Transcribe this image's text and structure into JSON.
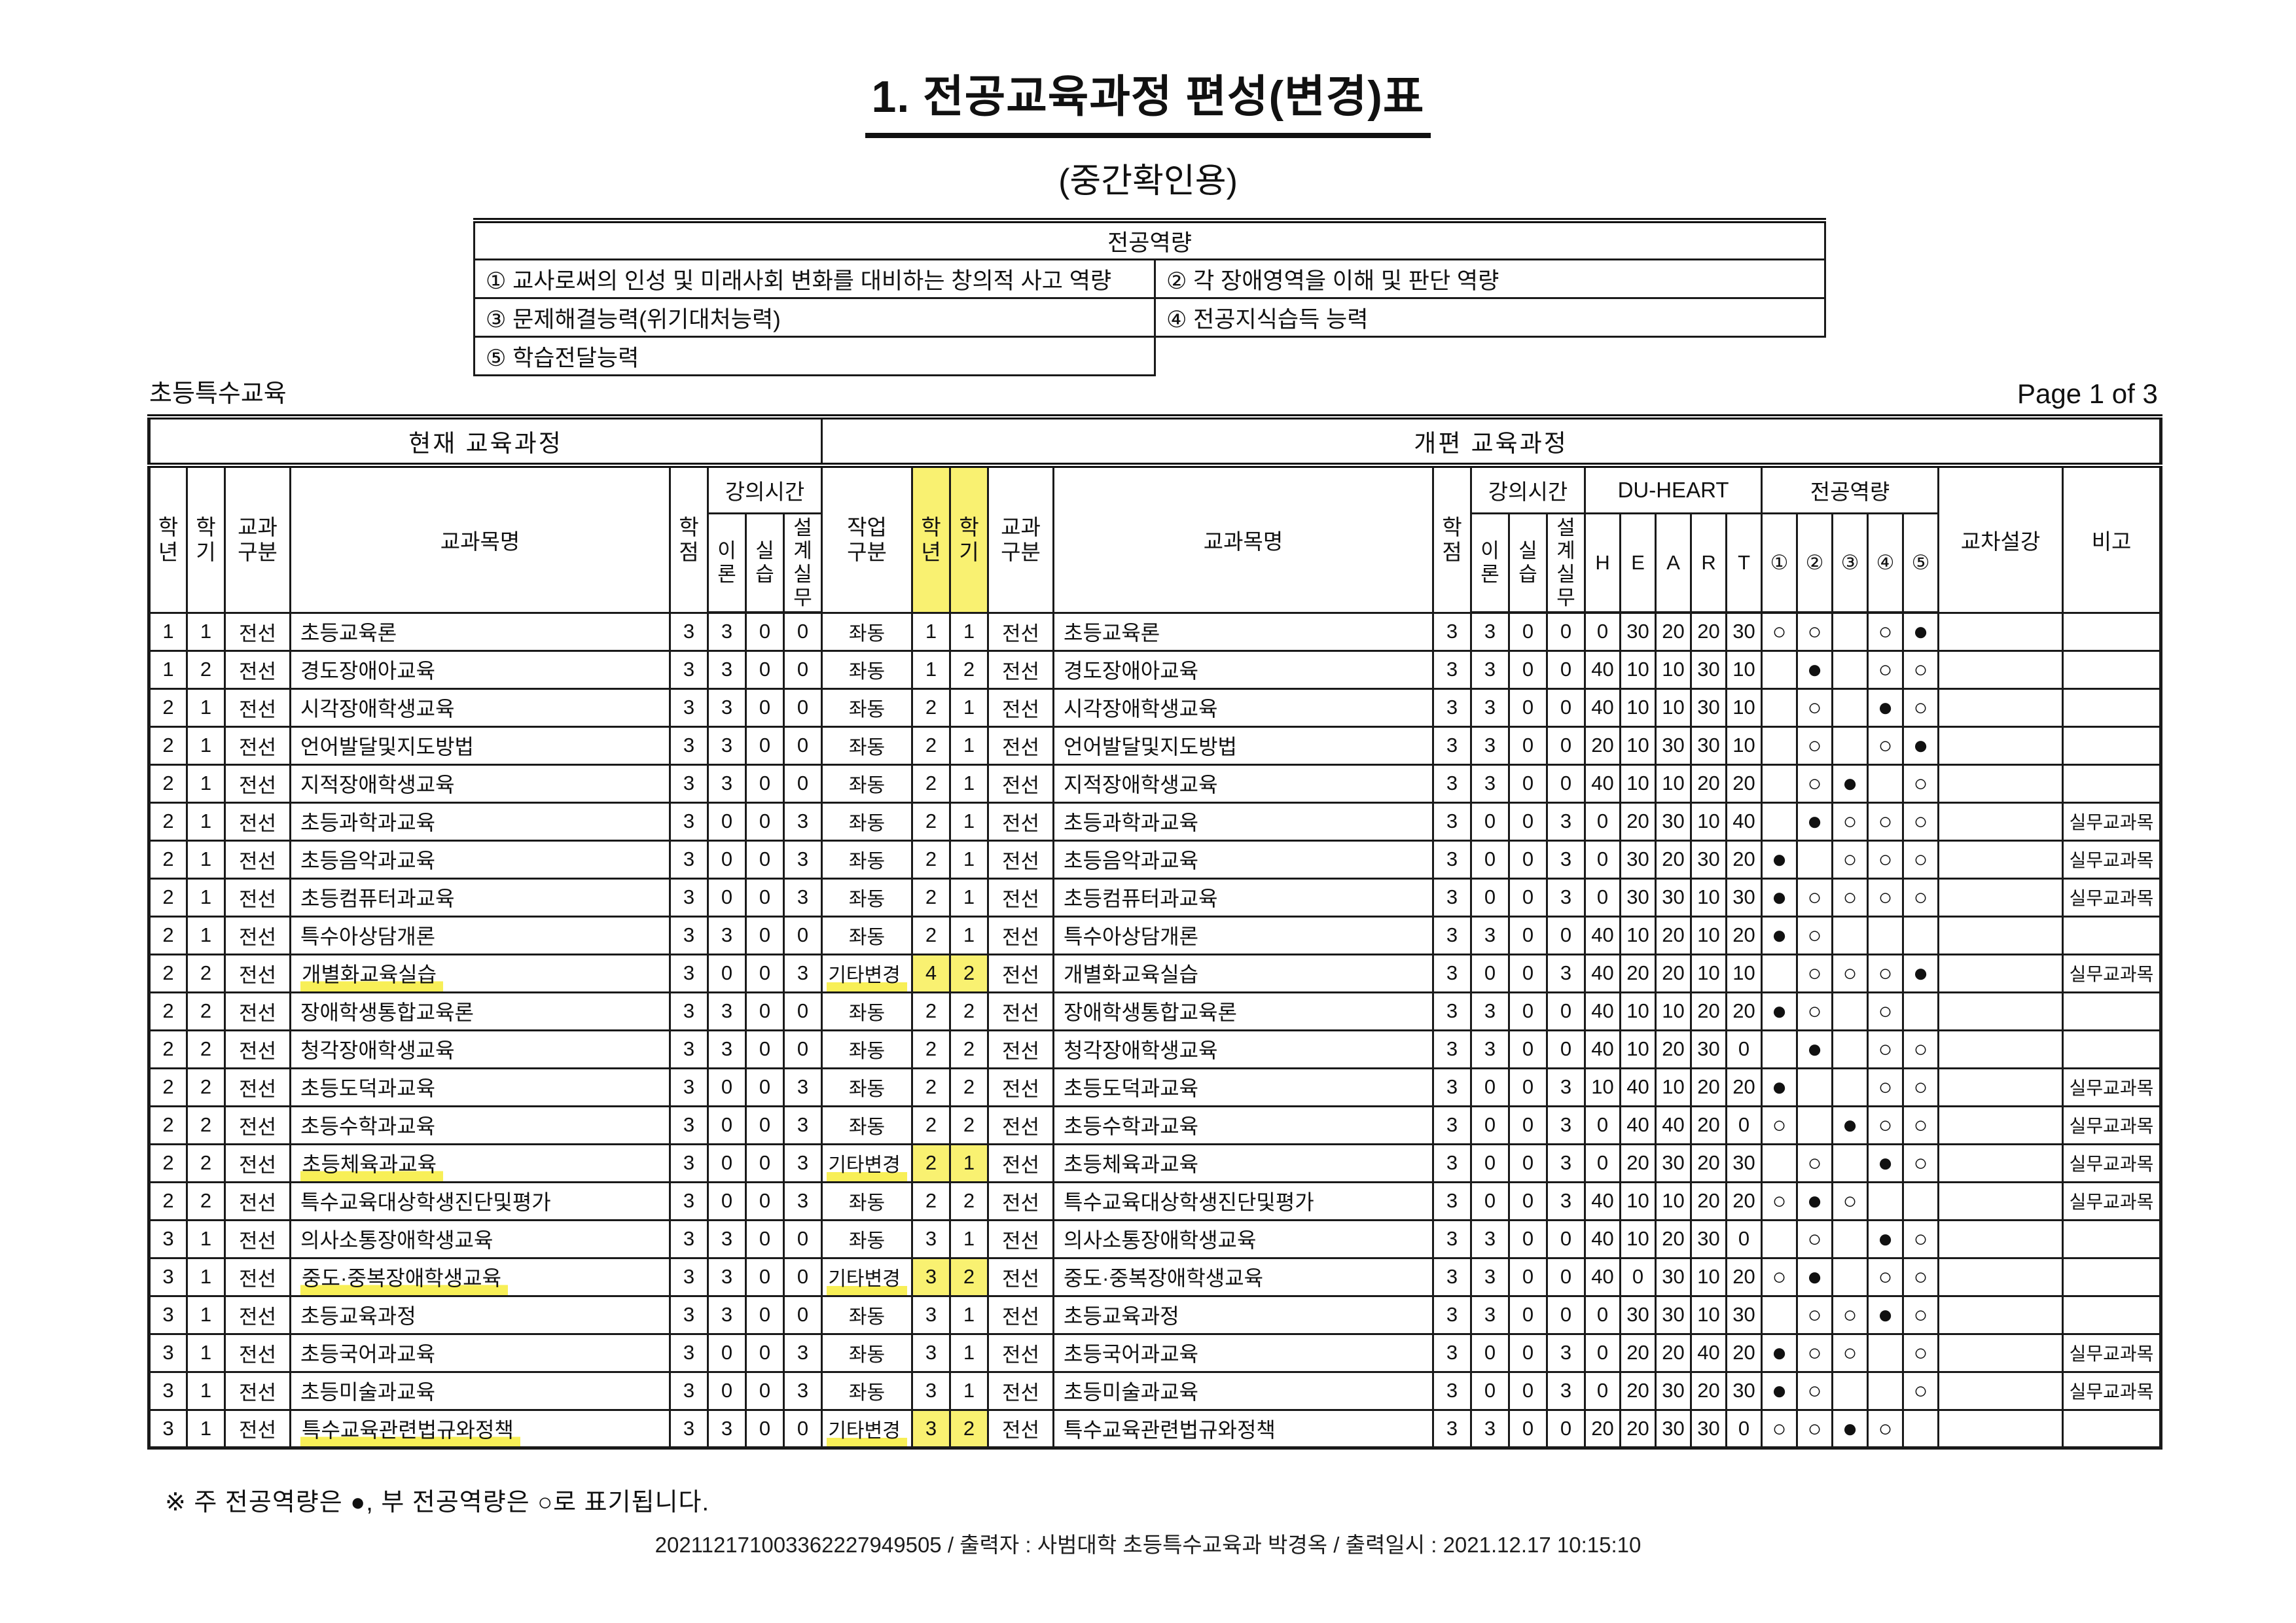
{
  "page": {
    "title": "1. 전공교육과정 편성(변경)표",
    "subtitle": "(중간확인용)",
    "department_label": "초등특수교육",
    "page_indicator": "Page 1 of 3",
    "footnote": "※ 주 전공역량은 ●, 부 전공역량은 ○로 표기됩니다.",
    "print_line": "202112171003362227949505 / 출력자 : 사범대학 초등특수교육과 박경옥 / 출력일시 : 2021.12.17 10:15:10",
    "highlight_color": "#f7ee4e"
  },
  "competency_box": {
    "title": "전공역량",
    "items": [
      [
        "① 교사로써의 인성 및 미래사회 변화를 대비하는 창의적 사고 역량",
        "② 각 장애영역을 이해 및 판단 역량"
      ],
      [
        "③ 문제해결능력(위기대처능력)",
        "④ 전공지식습득 능력"
      ],
      [
        "⑤ 학습전달능력",
        ""
      ]
    ]
  },
  "table": {
    "group_current": "현재 교육과정",
    "group_revised": "개편 교육과정",
    "headers": {
      "grade": "학\n년",
      "semester": "학\n기",
      "category": "교과\n구분",
      "course": "교과목명",
      "credit": "학\n점",
      "lecture_hours": "강의시간",
      "theory": "이\n론",
      "practice": "실\n습",
      "design": "설\n계\n실\n무",
      "work_type": "작업\n구분",
      "du_heart": "DU-HEART",
      "heart": [
        "H",
        "E",
        "A",
        "R",
        "T"
      ],
      "competency": "전공역량",
      "competency_nums": [
        "①",
        "②",
        "③",
        "④",
        "⑤"
      ],
      "cross_listing": "교차설강",
      "note": "비고"
    },
    "legend": {
      "major": "●",
      "minor": "○"
    },
    "rows": [
      {
        "cur": [
          "1",
          "1",
          "전선",
          "초등교육론",
          "3",
          "3",
          "0",
          "0"
        ],
        "rev": [
          "좌동",
          "1",
          "1",
          "전선",
          "초등교육론",
          "3",
          "3",
          "0",
          "0",
          "0",
          "30",
          "20",
          "20",
          "30",
          "○",
          "○",
          "",
          "○",
          "●",
          "",
          ""
        ],
        "hl": false
      },
      {
        "cur": [
          "1",
          "2",
          "전선",
          "경도장애아교육",
          "3",
          "3",
          "0",
          "0"
        ],
        "rev": [
          "좌동",
          "1",
          "2",
          "전선",
          "경도장애아교육",
          "3",
          "3",
          "0",
          "0",
          "40",
          "10",
          "10",
          "30",
          "10",
          "",
          "●",
          "",
          "○",
          "○",
          "",
          ""
        ],
        "hl": false
      },
      {
        "cur": [
          "2",
          "1",
          "전선",
          "시각장애학생교육",
          "3",
          "3",
          "0",
          "0"
        ],
        "rev": [
          "좌동",
          "2",
          "1",
          "전선",
          "시각장애학생교육",
          "3",
          "3",
          "0",
          "0",
          "40",
          "10",
          "10",
          "30",
          "10",
          "",
          "○",
          "",
          "●",
          "○",
          "",
          ""
        ],
        "hl": false
      },
      {
        "cur": [
          "2",
          "1",
          "전선",
          "언어발달및지도방법",
          "3",
          "3",
          "0",
          "0"
        ],
        "rev": [
          "좌동",
          "2",
          "1",
          "전선",
          "언어발달및지도방법",
          "3",
          "3",
          "0",
          "0",
          "20",
          "10",
          "30",
          "30",
          "10",
          "",
          "○",
          "",
          "○",
          "●",
          "",
          ""
        ],
        "hl": false
      },
      {
        "cur": [
          "2",
          "1",
          "전선",
          "지적장애학생교육",
          "3",
          "3",
          "0",
          "0"
        ],
        "rev": [
          "좌동",
          "2",
          "1",
          "전선",
          "지적장애학생교육",
          "3",
          "3",
          "0",
          "0",
          "40",
          "10",
          "10",
          "20",
          "20",
          "",
          "○",
          "●",
          "",
          "○",
          "",
          ""
        ],
        "hl": false
      },
      {
        "cur": [
          "2",
          "1",
          "전선",
          "초등과학과교육",
          "3",
          "0",
          "0",
          "3"
        ],
        "rev": [
          "좌동",
          "2",
          "1",
          "전선",
          "초등과학과교육",
          "3",
          "0",
          "0",
          "3",
          "0",
          "20",
          "30",
          "10",
          "40",
          "",
          "●",
          "○",
          "○",
          "○",
          "",
          "실무교과목"
        ],
        "hl": false
      },
      {
        "cur": [
          "2",
          "1",
          "전선",
          "초등음악과교육",
          "3",
          "0",
          "0",
          "3"
        ],
        "rev": [
          "좌동",
          "2",
          "1",
          "전선",
          "초등음악과교육",
          "3",
          "0",
          "0",
          "3",
          "0",
          "30",
          "20",
          "30",
          "20",
          "●",
          "",
          "○",
          "○",
          "○",
          "",
          "실무교과목"
        ],
        "hl": false
      },
      {
        "cur": [
          "2",
          "1",
          "전선",
          "초등컴퓨터과교육",
          "3",
          "0",
          "0",
          "3"
        ],
        "rev": [
          "좌동",
          "2",
          "1",
          "전선",
          "초등컴퓨터과교육",
          "3",
          "0",
          "0",
          "3",
          "0",
          "30",
          "30",
          "10",
          "30",
          "●",
          "○",
          "○",
          "○",
          "○",
          "",
          "실무교과목"
        ],
        "hl": false
      },
      {
        "cur": [
          "2",
          "1",
          "전선",
          "특수아상담개론",
          "3",
          "3",
          "0",
          "0"
        ],
        "rev": [
          "좌동",
          "2",
          "1",
          "전선",
          "특수아상담개론",
          "3",
          "3",
          "0",
          "0",
          "40",
          "10",
          "20",
          "10",
          "20",
          "●",
          "○",
          "",
          "",
          "",
          "",
          ""
        ],
        "hl": false
      },
      {
        "cur": [
          "2",
          "2",
          "전선",
          "개별화교육실습",
          "3",
          "0",
          "0",
          "3"
        ],
        "rev": [
          "기타변경",
          "4",
          "2",
          "전선",
          "개별화교육실습",
          "3",
          "0",
          "0",
          "3",
          "40",
          "20",
          "20",
          "10",
          "10",
          "",
          "○",
          "○",
          "○",
          "●",
          "",
          "실무교과목"
        ],
        "hl": true
      },
      {
        "cur": [
          "2",
          "2",
          "전선",
          "장애학생통합교육론",
          "3",
          "3",
          "0",
          "0"
        ],
        "rev": [
          "좌동",
          "2",
          "2",
          "전선",
          "장애학생통합교육론",
          "3",
          "3",
          "0",
          "0",
          "40",
          "10",
          "10",
          "20",
          "20",
          "●",
          "○",
          "",
          "○",
          "",
          "",
          ""
        ],
        "hl": false
      },
      {
        "cur": [
          "2",
          "2",
          "전선",
          "청각장애학생교육",
          "3",
          "3",
          "0",
          "0"
        ],
        "rev": [
          "좌동",
          "2",
          "2",
          "전선",
          "청각장애학생교육",
          "3",
          "3",
          "0",
          "0",
          "40",
          "10",
          "20",
          "30",
          "0",
          "",
          "●",
          "",
          "○",
          "○",
          "",
          ""
        ],
        "hl": false
      },
      {
        "cur": [
          "2",
          "2",
          "전선",
          "초등도덕과교육",
          "3",
          "0",
          "0",
          "3"
        ],
        "rev": [
          "좌동",
          "2",
          "2",
          "전선",
          "초등도덕과교육",
          "3",
          "0",
          "0",
          "3",
          "10",
          "40",
          "10",
          "20",
          "20",
          "●",
          "",
          "",
          "○",
          "○",
          "",
          "실무교과목"
        ],
        "hl": false
      },
      {
        "cur": [
          "2",
          "2",
          "전선",
          "초등수학과교육",
          "3",
          "0",
          "0",
          "3"
        ],
        "rev": [
          "좌동",
          "2",
          "2",
          "전선",
          "초등수학과교육",
          "3",
          "0",
          "0",
          "3",
          "0",
          "40",
          "40",
          "20",
          "0",
          "○",
          "",
          "●",
          "○",
          "○",
          "",
          "실무교과목"
        ],
        "hl": false
      },
      {
        "cur": [
          "2",
          "2",
          "전선",
          "초등체육과교육",
          "3",
          "0",
          "0",
          "3"
        ],
        "rev": [
          "기타변경",
          "2",
          "1",
          "전선",
          "초등체육과교육",
          "3",
          "0",
          "0",
          "3",
          "0",
          "20",
          "30",
          "20",
          "30",
          "",
          "○",
          "",
          "●",
          "○",
          "",
          "실무교과목"
        ],
        "hl": true
      },
      {
        "cur": [
          "2",
          "2",
          "전선",
          "특수교육대상학생진단및평가",
          "3",
          "0",
          "0",
          "3"
        ],
        "rev": [
          "좌동",
          "2",
          "2",
          "전선",
          "특수교육대상학생진단및평가",
          "3",
          "0",
          "0",
          "3",
          "40",
          "10",
          "10",
          "20",
          "20",
          "○",
          "●",
          "○",
          "",
          "",
          "",
          "실무교과목"
        ],
        "hl": false
      },
      {
        "cur": [
          "3",
          "1",
          "전선",
          "의사소통장애학생교육",
          "3",
          "3",
          "0",
          "0"
        ],
        "rev": [
          "좌동",
          "3",
          "1",
          "전선",
          "의사소통장애학생교육",
          "3",
          "3",
          "0",
          "0",
          "40",
          "10",
          "20",
          "30",
          "0",
          "",
          "○",
          "",
          "●",
          "○",
          "",
          ""
        ],
        "hl": false
      },
      {
        "cur": [
          "3",
          "1",
          "전선",
          "중도·중복장애학생교육",
          "3",
          "3",
          "0",
          "0"
        ],
        "rev": [
          "기타변경",
          "3",
          "2",
          "전선",
          "중도·중복장애학생교육",
          "3",
          "3",
          "0",
          "0",
          "40",
          "0",
          "30",
          "10",
          "20",
          "○",
          "●",
          "",
          "○",
          "○",
          "",
          ""
        ],
        "hl": true
      },
      {
        "cur": [
          "3",
          "1",
          "전선",
          "초등교육과정",
          "3",
          "3",
          "0",
          "0"
        ],
        "rev": [
          "좌동",
          "3",
          "1",
          "전선",
          "초등교육과정",
          "3",
          "3",
          "0",
          "0",
          "0",
          "30",
          "30",
          "10",
          "30",
          "",
          "○",
          "○",
          "●",
          "○",
          "",
          ""
        ],
        "hl": false
      },
      {
        "cur": [
          "3",
          "1",
          "전선",
          "초등국어과교육",
          "3",
          "0",
          "0",
          "3"
        ],
        "rev": [
          "좌동",
          "3",
          "1",
          "전선",
          "초등국어과교육",
          "3",
          "0",
          "0",
          "3",
          "0",
          "20",
          "20",
          "40",
          "20",
          "●",
          "○",
          "○",
          "",
          "○",
          "",
          "실무교과목"
        ],
        "hl": false
      },
      {
        "cur": [
          "3",
          "1",
          "전선",
          "초등미술과교육",
          "3",
          "0",
          "0",
          "3"
        ],
        "rev": [
          "좌동",
          "3",
          "1",
          "전선",
          "초등미술과교육",
          "3",
          "0",
          "0",
          "3",
          "0",
          "20",
          "30",
          "20",
          "30",
          "●",
          "○",
          "",
          "",
          "○",
          "",
          "실무교과목"
        ],
        "hl": false
      },
      {
        "cur": [
          "3",
          "1",
          "전선",
          "특수교육관련법규와정책",
          "3",
          "3",
          "0",
          "0"
        ],
        "rev": [
          "기타변경",
          "3",
          "2",
          "전선",
          "특수교육관련법규와정책",
          "3",
          "3",
          "0",
          "0",
          "20",
          "20",
          "30",
          "30",
          "0",
          "○",
          "○",
          "●",
          "○",
          "",
          "",
          ""
        ],
        "hl": true
      }
    ]
  }
}
